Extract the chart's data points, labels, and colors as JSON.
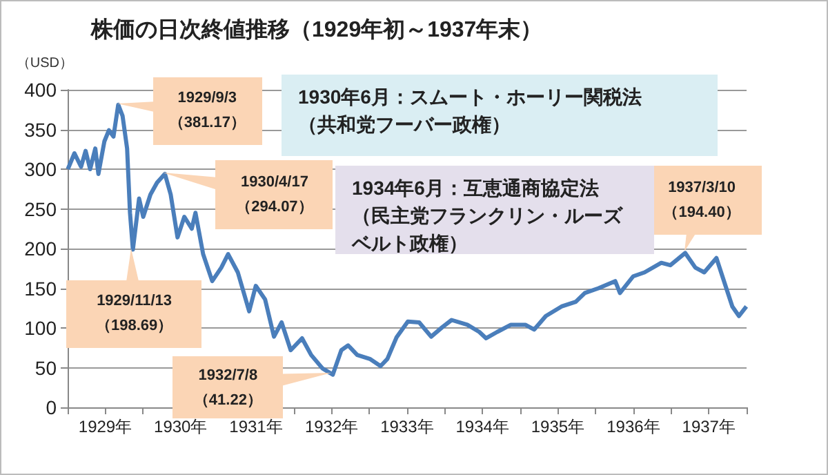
{
  "chart_data": {
    "type": "line",
    "title": "株価の日次終値推移（1929年初～1937年末）",
    "ylabel": "（USD）",
    "x": [
      "1929-01-02",
      "1929-02-03",
      "1929-03-07",
      "1929-03-29",
      "1929-04-20",
      "1929-05-15",
      "1929-05-30",
      "1929-06-28",
      "1929-07-20",
      "1929-08-11",
      "1929-09-03",
      "1929-09-24",
      "1929-10-16",
      "1929-10-30",
      "1929-11-13",
      "1929-12-13",
      "1930-01-02",
      "1930-02-06",
      "1930-03-10",
      "1930-04-17",
      "1930-05-15",
      "1930-06-17",
      "1930-07-20",
      "1930-08-25",
      "1930-09-12",
      "1930-10-19",
      "1930-12-02",
      "1931-01-15",
      "1931-02-17",
      "1931-04-05",
      "1931-05-30",
      "1931-07-01",
      "1931-08-15",
      "1931-09-27",
      "1931-11-03",
      "1931-12-17",
      "1932-02-10",
      "1932-03-25",
      "1932-05-19",
      "1932-07-08",
      "1932-08-18",
      "1932-09-20",
      "1932-11-03",
      "1933-01-03",
      "1933-02-24",
      "1933-03-29",
      "1933-05-12",
      "1933-07-06",
      "1933-08-30",
      "1933-10-27",
      "1933-12-20",
      "1934-02-03",
      "1934-04-20",
      "1934-06-17",
      "1934-07-20",
      "1934-09-12",
      "1934-11-17",
      "1935-01-26",
      "1935-03-10",
      "1935-05-05",
      "1935-07-20",
      "1935-09-27",
      "1935-11-10",
      "1936-01-15",
      "1936-04-05",
      "1936-04-28",
      "1936-07-01",
      "1936-08-25",
      "1936-11-14",
      "1936-12-28",
      "1937-03-10",
      "1937-04-28",
      "1937-06-10",
      "1937-08-08",
      "1937-09-21",
      "1937-10-24",
      "1937-11-25",
      "1937-12-31"
    ],
    "series": [
      {
        "color": "#4a7ebb",
        "values": [
          300,
          320,
          303,
          323,
          300,
          326,
          294,
          335,
          349,
          341,
          381.17,
          367,
          326,
          245,
          198.69,
          263,
          240,
          268,
          283,
          294.07,
          268,
          214,
          240,
          225,
          245,
          193,
          159,
          176,
          193,
          170,
          121,
          153,
          136,
          89,
          107,
          72,
          87,
          66,
          49,
          41.22,
          72,
          78,
          66,
          61,
          52,
          61,
          88,
          108,
          107,
          89,
          101,
          110,
          104,
          95,
          87,
          95,
          104,
          104,
          98,
          115,
          127,
          133,
          144,
          150,
          159,
          144,
          165,
          170,
          182,
          179,
          194.4,
          176,
          170,
          188,
          153,
          127,
          115,
          127
        ]
      }
    ],
    "xlim": [
      "1929-01-01",
      "1938-01-01"
    ],
    "xticks": [
      {
        "value": "1929-01-01",
        "label": null
      },
      {
        "value": "1929-07-02",
        "label": "1929年"
      },
      {
        "value": "1930-01-01",
        "label": null
      },
      {
        "value": "1930-07-02",
        "label": "1930年"
      },
      {
        "value": "1931-01-01",
        "label": null
      },
      {
        "value": "1931-07-02",
        "label": "1931年"
      },
      {
        "value": "1932-01-01",
        "label": null
      },
      {
        "value": "1932-07-02",
        "label": "1932年"
      },
      {
        "value": "1933-01-01",
        "label": null
      },
      {
        "value": "1933-07-02",
        "label": "1933年"
      },
      {
        "value": "1934-01-01",
        "label": null
      },
      {
        "value": "1934-07-02",
        "label": "1934年"
      },
      {
        "value": "1935-01-01",
        "label": null
      },
      {
        "value": "1935-07-02",
        "label": "1935年"
      },
      {
        "value": "1936-01-01",
        "label": null
      },
      {
        "value": "1936-07-02",
        "label": "1936年"
      },
      {
        "value": "1937-01-01",
        "label": null
      },
      {
        "value": "1937-07-02",
        "label": "1937年"
      },
      {
        "value": "1938-01-01",
        "label": null
      }
    ],
    "ylim": [
      0,
      400
    ],
    "yticks": [
      0,
      50,
      100,
      150,
      200,
      250,
      300,
      350,
      400
    ],
    "grid": "y",
    "annotations": [
      {
        "text": "1929/9/3\n（381.17）",
        "x": "1929-09-03",
        "y": 381.17
      },
      {
        "text": "1930/4/17\n（294.07）",
        "x": "1930-04-17",
        "y": 294.07
      },
      {
        "text": "1929/11/13\n（198.69）",
        "x": "1929-11-13",
        "y": 198.69
      },
      {
        "text": "1932/7/8\n（41.22）",
        "x": "1932-07-08",
        "y": 41.22
      },
      {
        "text": "1937/3/10\n（194.40）",
        "x": "1937-03-10",
        "y": 194.4
      },
      "1930年6月：スムート・ホーリー関税法（共和党フーバー政権）",
      "1934年6月：互恵通商協定法（民主党フランクリン・ルーズベルト政権）"
    ]
  }
}
